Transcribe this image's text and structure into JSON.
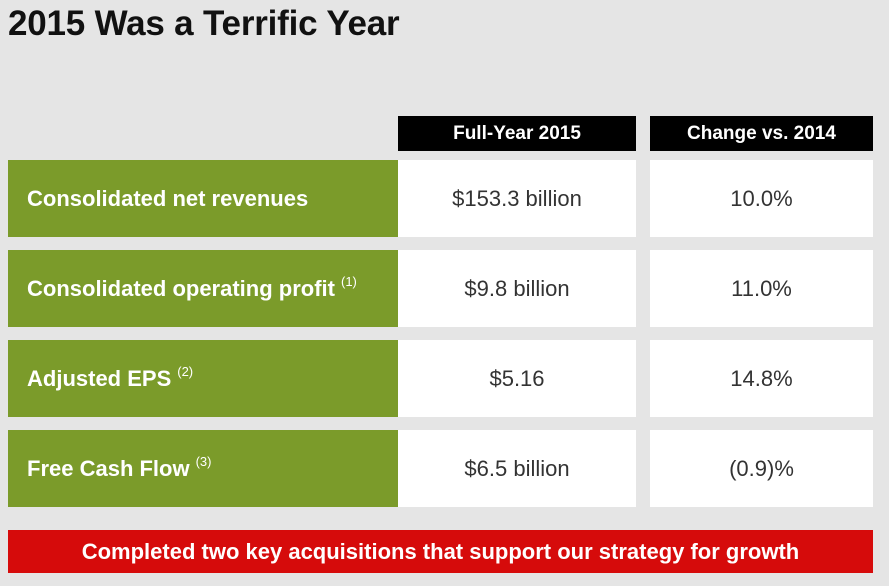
{
  "title": "2015 Was a Terrific Year",
  "columns": {
    "full_year": "Full-Year 2015",
    "change": "Change vs. 2014"
  },
  "rows": [
    {
      "label": "Consolidated net revenues",
      "note": "",
      "full_year": "$153.3 billion",
      "change": "10.0%"
    },
    {
      "label": "Consolidated operating profit",
      "note": "(1)",
      "full_year": "$9.8 billion",
      "change": "11.0%"
    },
    {
      "label": "Adjusted EPS",
      "note": "(2)",
      "full_year": "$5.16",
      "change": "14.8%"
    },
    {
      "label": "Free Cash Flow",
      "note": "(3)",
      "full_year": "$6.5 billion",
      "change": "(0.9)%"
    }
  ],
  "banner": "Completed two key acquisitions that support our strategy for growth",
  "colors": {
    "label_background": "#7b9b2a",
    "header_background": "#000000",
    "banner_background": "#d60b0b",
    "page_background": "#e5e5e5"
  }
}
